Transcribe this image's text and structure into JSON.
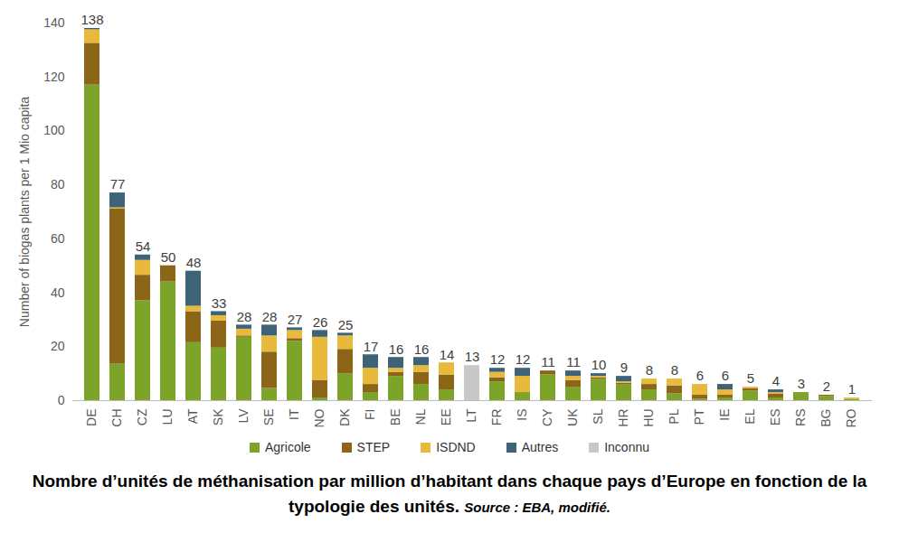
{
  "chart_data": {
    "type": "bar",
    "stacked": true,
    "title": "Nombre d’unités de méthanisation par million d’habitant dans chaque pays d’Europe en fonction de la typologie des unités.",
    "source": "Source : EBA, modifié.",
    "y_label": "Number of biogas plants per 1 Mio capita",
    "categories": [
      "DE",
      "CH",
      "CZ",
      "LU",
      "AT",
      "SK",
      "LV",
      "SE",
      "IT",
      "NO",
      "DK",
      "FI",
      "BE",
      "NL",
      "EE",
      "LT",
      "FR",
      "IS",
      "CY",
      "UK",
      "SL",
      "HR",
      "HU",
      "PL",
      "PT",
      "IE",
      "EL",
      "ES",
      "RS",
      "BG",
      "RO"
    ],
    "series": [
      {
        "name": "Agricole",
        "color": "#7ba428",
        "values": [
          117,
          13.5,
          37,
          44,
          21.5,
          19.5,
          23.5,
          4.5,
          22,
          1,
          10,
          3,
          9,
          6,
          4,
          0,
          7,
          3,
          9.5,
          5,
          8,
          6,
          4,
          2.5,
          0.5,
          1,
          3.5,
          1,
          3,
          1.5,
          0.5
        ]
      },
      {
        "name": "STEP",
        "color": "#8d6519",
        "values": [
          15.5,
          57.5,
          9.5,
          6,
          11.5,
          10,
          0.5,
          13.5,
          1,
          6.5,
          9,
          3,
          1.5,
          4.5,
          5.5,
          0,
          1.5,
          0,
          1.5,
          2.5,
          0.5,
          0.5,
          2,
          3,
          1.5,
          1,
          1,
          1.5,
          0,
          0.5,
          0
        ]
      },
      {
        "name": "ISDND",
        "color": "#e8b93a",
        "values": [
          5,
          0.5,
          5.5,
          0,
          2,
          2,
          2.5,
          6,
          3,
          16,
          5,
          6,
          1.5,
          2.5,
          4.5,
          0,
          2,
          6,
          0,
          1.5,
          0.5,
          0.5,
          2,
          2.5,
          4,
          2,
          0.5,
          0.5,
          0,
          0,
          0.5
        ]
      },
      {
        "name": "Autres",
        "color": "#3e6379",
        "values": [
          0.5,
          5.5,
          2,
          0,
          13,
          1.5,
          1.5,
          4,
          1,
          2.5,
          1,
          5,
          4,
          3,
          0,
          0,
          1.5,
          3,
          0,
          2,
          1,
          2,
          0,
          0,
          0,
          2,
          0,
          1,
          0,
          0,
          0
        ]
      },
      {
        "name": "Inconnu",
        "color": "#c8c8c8",
        "values": [
          0,
          0,
          0,
          0,
          0,
          0,
          0,
          0,
          0,
          0,
          0,
          0,
          0,
          0,
          0,
          13,
          0,
          0,
          0,
          0,
          0,
          0,
          0,
          0,
          0,
          0,
          0,
          0,
          0,
          0,
          0
        ]
      }
    ],
    "totals": [
      138,
      77,
      54,
      50,
      48,
      33,
      28,
      28,
      27,
      26,
      25,
      17,
      16,
      16,
      14,
      13,
      12,
      12,
      11,
      11,
      10,
      9,
      8,
      8,
      6,
      6,
      5,
      4,
      3,
      2,
      1
    ],
    "data_labels": true,
    "ylim": [
      0,
      140
    ],
    "yticks": [
      0,
      20,
      40,
      60,
      80,
      100,
      120,
      140
    ],
    "grid": false,
    "legend": "bottom"
  }
}
